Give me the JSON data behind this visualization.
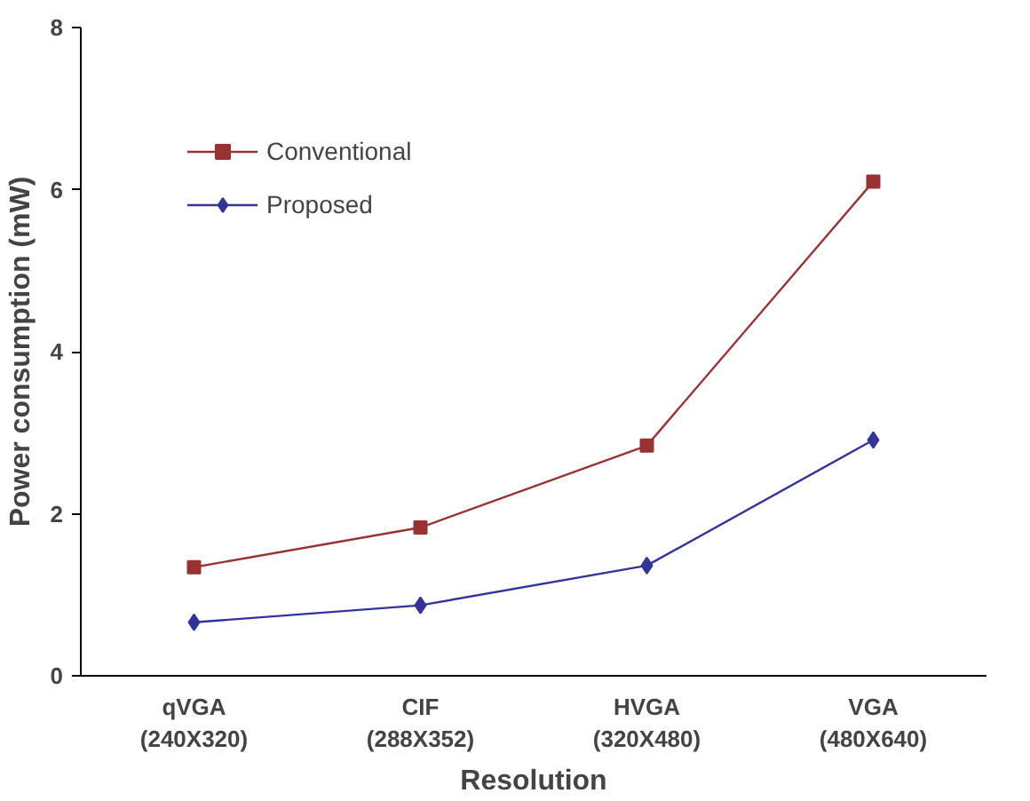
{
  "chart_data": {
    "type": "line",
    "xlabel": "Resolution",
    "ylabel": "Power consumption (mW)",
    "categories": [
      "qVGA\n(240X320)",
      "CIF\n(288X352)",
      "HVGA\n(320X480)",
      "VGA\n(480X640)"
    ],
    "series": [
      {
        "name": "Conventional",
        "color": "#993333",
        "marker": "square",
        "values": [
          1.34,
          1.83,
          2.84,
          6.1
        ]
      },
      {
        "name": "Proposed",
        "color": "#333399",
        "marker": "diamond",
        "values": [
          0.66,
          0.87,
          1.36,
          2.91
        ]
      }
    ],
    "ylim": [
      0,
      8
    ],
    "yticks": [
      0,
      2,
      4,
      6,
      8
    ],
    "grid": false,
    "legend": "top left",
    "line_style": "solid"
  }
}
